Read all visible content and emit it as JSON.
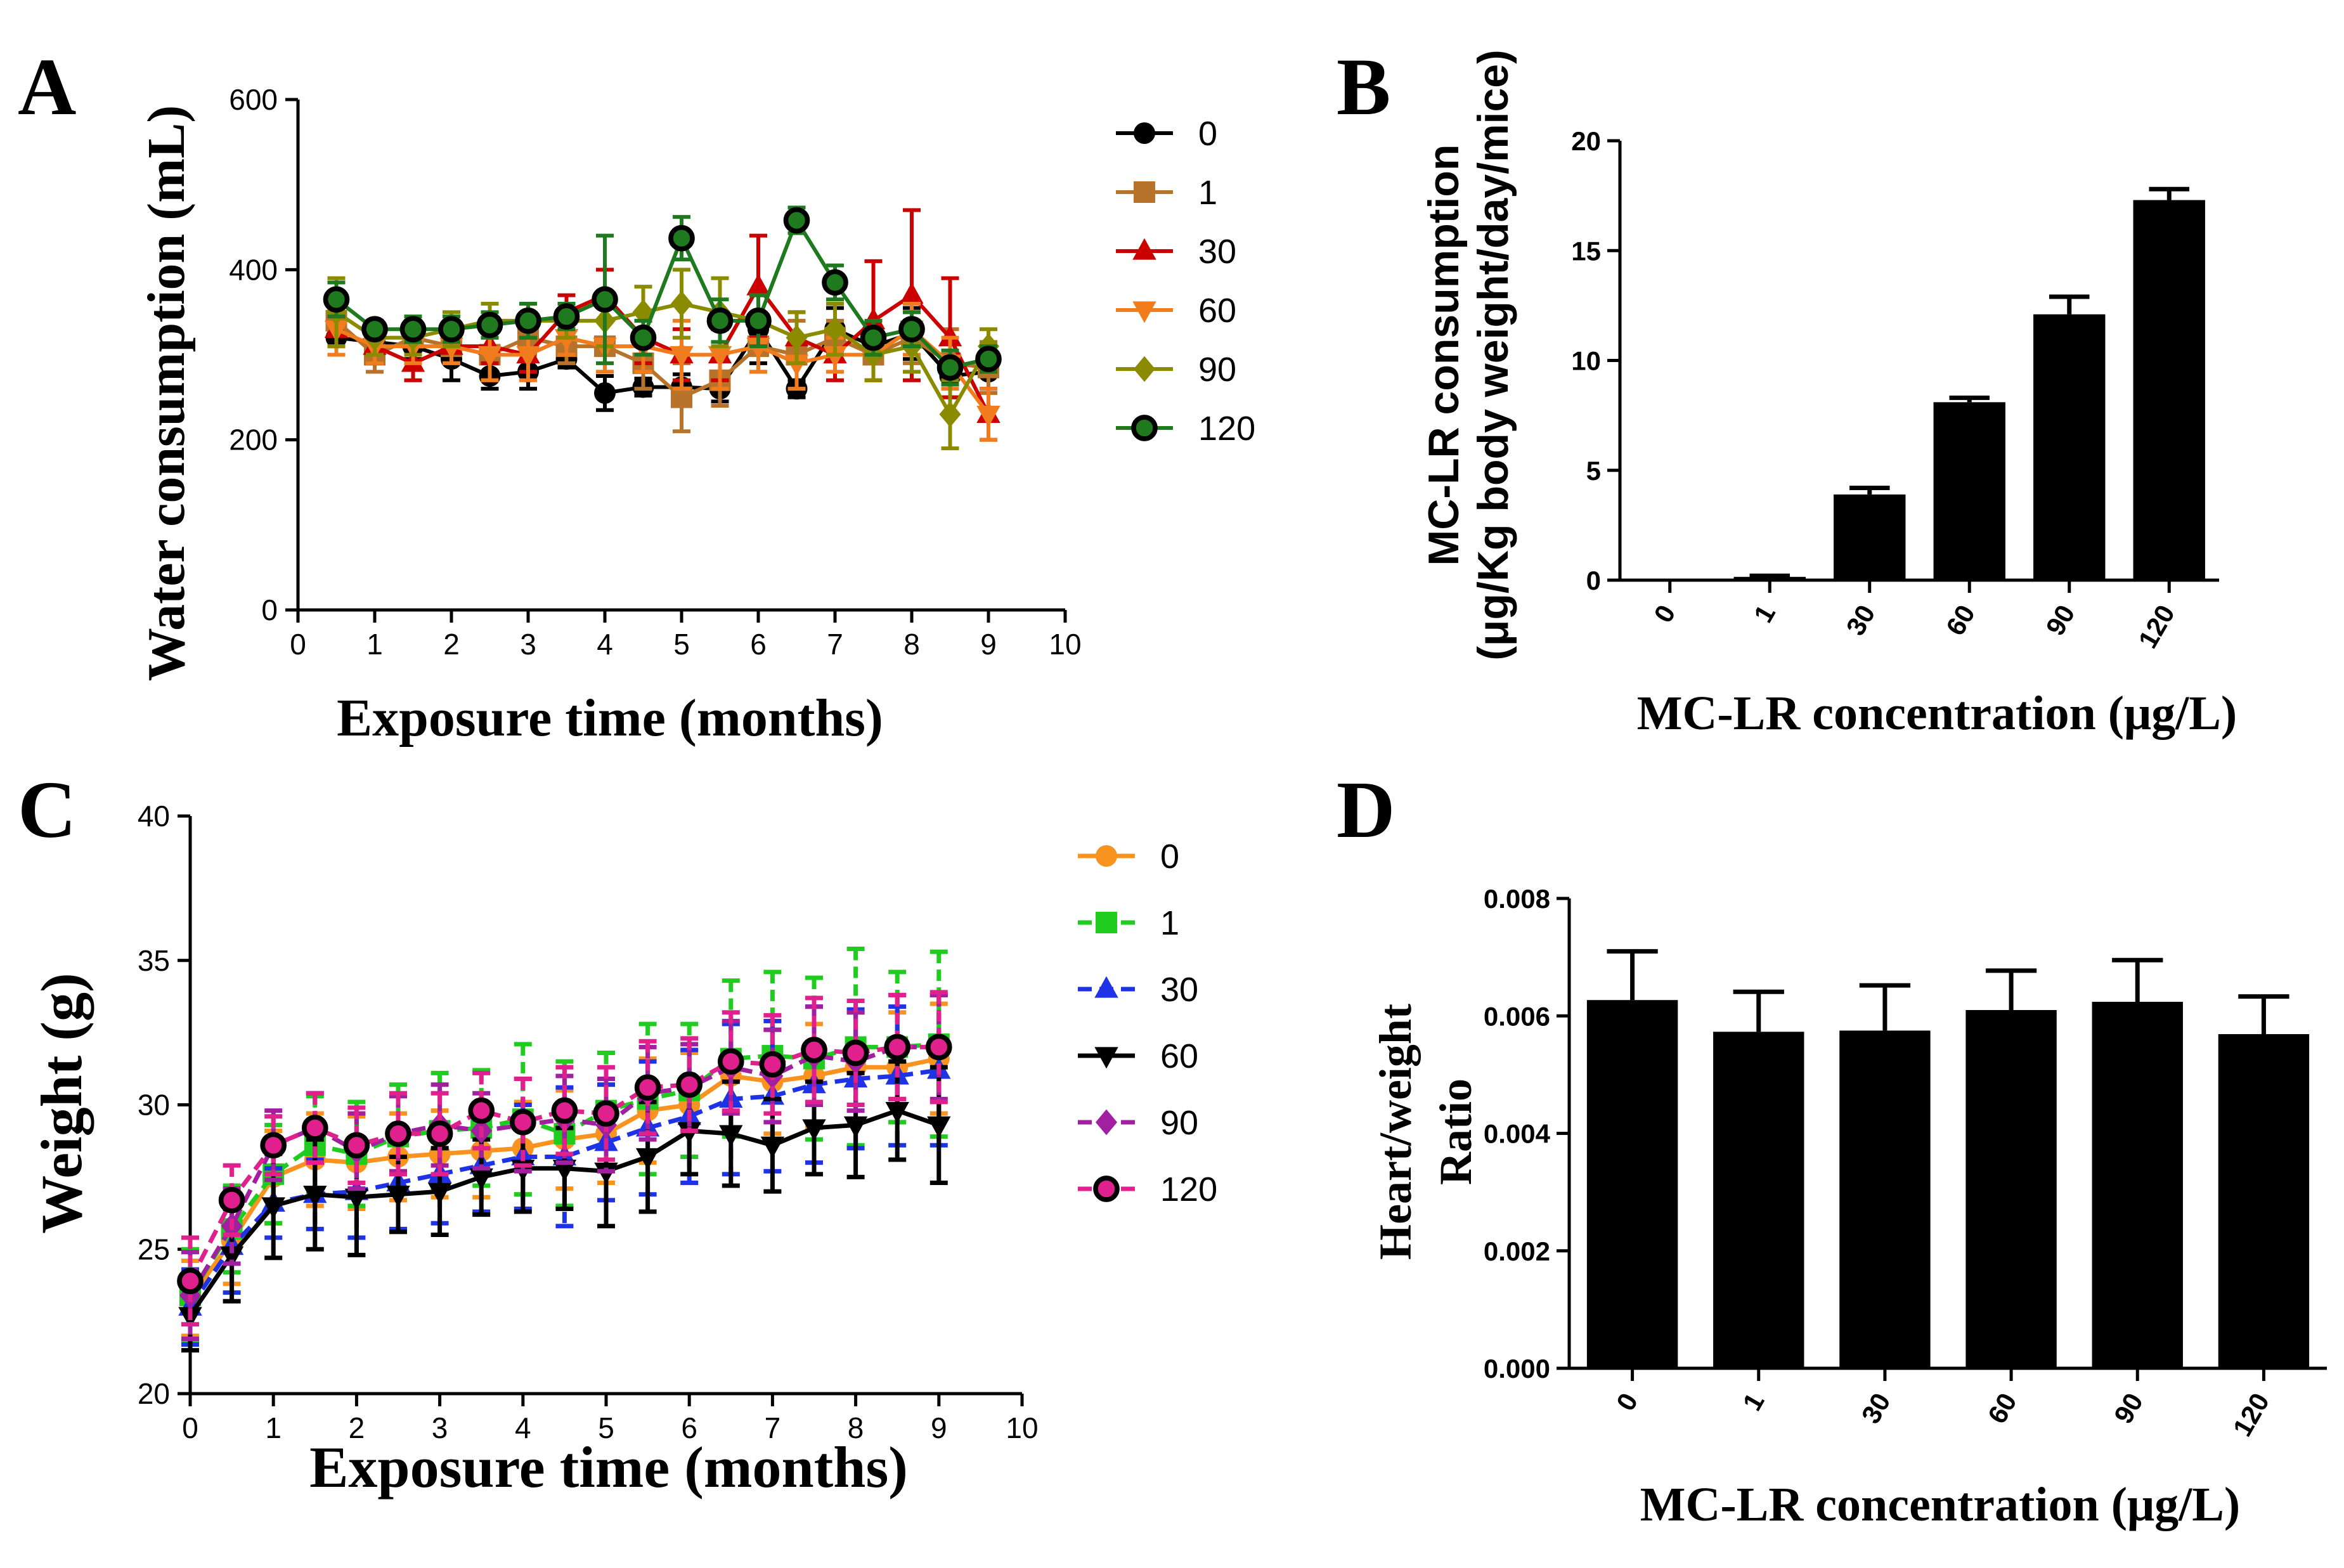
{
  "colors": {
    "c0": "#000000",
    "c1": "#B8732A",
    "c30": "#CC0000",
    "c60": "#F07C1E",
    "c90": "#8B8B00",
    "c120": "#1F7A1F",
    "w0": "#F7931E",
    "w1": "#1FCC1F",
    "w30": "#1E32E6",
    "w60": "#000000",
    "w90": "#A020A0",
    "w120": "#E0208C"
  },
  "chart_data": [
    {
      "id": "A",
      "panel_label": "A",
      "type": "line",
      "title": "",
      "xlabel": "Exposure time (months)",
      "ylabel": "Water consumption (mL)",
      "xlim": [
        0,
        10
      ],
      "ylim": [
        0,
        600
      ],
      "xticks": [
        "0",
        "1",
        "2",
        "3",
        "4",
        "5",
        "6",
        "7",
        "8",
        "9",
        "10"
      ],
      "yticks": [
        "0",
        "200",
        "400",
        "600"
      ],
      "legend_position": "right",
      "x": [
        0.5,
        1,
        1.5,
        2,
        2.5,
        3,
        3.5,
        4,
        4.5,
        5,
        5.5,
        6,
        6.5,
        7,
        7.5,
        8,
        8.5,
        9
      ],
      "series": [
        {
          "name": "0",
          "marker": "circle",
          "color_key": "c0",
          "values": [
            320,
            315,
            310,
            295,
            275,
            280,
            295,
            255,
            262,
            262,
            260,
            330,
            260,
            330,
            310,
            325,
            275,
            280
          ],
          "errors": [
            20,
            15,
            15,
            25,
            15,
            20,
            10,
            20,
            10,
            15,
            15,
            40,
            10,
            25,
            20,
            30,
            25,
            20
          ]
        },
        {
          "name": "1",
          "marker": "square",
          "color_key": "c1",
          "values": [
            340,
            300,
            320,
            310,
            300,
            320,
            310,
            310,
            290,
            250,
            270,
            310,
            300,
            320,
            300,
            320,
            290,
            285
          ],
          "errors": [
            30,
            20,
            20,
            20,
            30,
            20,
            20,
            30,
            30,
            40,
            30,
            30,
            40,
            20,
            30,
            30,
            40,
            30
          ]
        },
        {
          "name": "30",
          "marker": "triangle-up",
          "color_key": "c30",
          "values": [
            330,
            310,
            290,
            310,
            310,
            300,
            350,
            370,
            320,
            300,
            300,
            380,
            320,
            300,
            340,
            370,
            320,
            230
          ],
          "errors": [
            20,
            20,
            20,
            20,
            20,
            20,
            20,
            30,
            30,
            30,
            30,
            60,
            30,
            30,
            70,
            100,
            70,
            30
          ]
        },
        {
          "name": "60",
          "marker": "triangle-down",
          "color_key": "c60",
          "values": [
            330,
            310,
            310,
            310,
            300,
            300,
            320,
            310,
            310,
            300,
            300,
            310,
            290,
            300,
            300,
            330,
            290,
            230
          ],
          "errors": [
            30,
            20,
            20,
            20,
            30,
            30,
            20,
            30,
            30,
            40,
            40,
            30,
            30,
            20,
            30,
            30,
            30,
            30
          ]
        },
        {
          "name": "90",
          "marker": "diamond",
          "color_key": "c90",
          "values": [
            350,
            320,
            320,
            330,
            340,
            340,
            340,
            340,
            350,
            360,
            350,
            340,
            320,
            330,
            300,
            310,
            230,
            310
          ],
          "errors": [
            40,
            20,
            20,
            20,
            20,
            20,
            20,
            30,
            30,
            40,
            40,
            30,
            30,
            30,
            30,
            30,
            40,
            20
          ]
        },
        {
          "name": "120",
          "marker": "circle-ring",
          "color_key": "c120",
          "values": [
            365,
            330,
            330,
            330,
            335,
            340,
            345,
            365,
            320,
            437,
            340,
            340,
            458,
            385,
            320,
            330,
            285,
            295
          ],
          "errors": [
            20,
            10,
            15,
            15,
            15,
            20,
            15,
            75,
            20,
            25,
            25,
            30,
            15,
            20,
            20,
            20,
            20,
            15
          ]
        }
      ]
    },
    {
      "id": "B",
      "panel_label": "B",
      "type": "bar",
      "title": "",
      "xlabel": "MC-LR concentration (μg/L)",
      "ylabel_line1": "MC-LR consumption",
      "ylabel_line2": "(μg/Kg body weight/day/mice)",
      "ylim": [
        0,
        20
      ],
      "yticks": [
        "0",
        "5",
        "10",
        "15",
        "20"
      ],
      "categories": [
        "0",
        "1",
        "30",
        "60",
        "90",
        "120"
      ],
      "values": [
        0,
        0.15,
        3.9,
        8.1,
        12.1,
        17.3
      ],
      "errors": [
        0,
        0.05,
        0.3,
        0.2,
        0.8,
        0.5
      ]
    },
    {
      "id": "C",
      "panel_label": "C",
      "type": "line",
      "title": "",
      "xlabel": "Exposure time (months)",
      "ylabel": "Weight  (g)",
      "xlim": [
        0,
        10
      ],
      "ylim": [
        20,
        40
      ],
      "xticks": [
        "0",
        "1",
        "2",
        "3",
        "4",
        "5",
        "6",
        "7",
        "8",
        "9",
        "10"
      ],
      "yticks": [
        "20",
        "25",
        "30",
        "35",
        "40"
      ],
      "legend_position": "right",
      "x": [
        0,
        0.5,
        1,
        1.5,
        2,
        2.5,
        3,
        3.5,
        4,
        4.5,
        5,
        5.5,
        6,
        6.5,
        7,
        7.5,
        8,
        8.5,
        9
      ],
      "series": [
        {
          "name": "0",
          "marker": "circle",
          "color_key": "w0",
          "dashed": false,
          "values": [
            23.3,
            25.3,
            27.5,
            28.1,
            28.0,
            28.2,
            28.3,
            28.4,
            28.5,
            28.8,
            29.0,
            29.8,
            30.0,
            31.0,
            30.8,
            31.0,
            31.3,
            31.3,
            31.6
          ],
          "errors": [
            1.3,
            1.5,
            1.6,
            1.6,
            1.6,
            1.5,
            1.5,
            1.6,
            1.6,
            1.7,
            1.7,
            1.8,
            1.8,
            1.8,
            1.8,
            1.8,
            1.9,
            1.9,
            1.9
          ]
        },
        {
          "name": "1",
          "marker": "square",
          "color_key": "w1",
          "dashed": true,
          "values": [
            23.4,
            25.7,
            27.6,
            28.6,
            28.3,
            28.9,
            29.1,
            29.2,
            29.5,
            29.0,
            29.8,
            30.2,
            30.5,
            31.6,
            31.7,
            31.6,
            32.0,
            32.0,
            32.1
          ],
          "errors": [
            1.6,
            1.5,
            1.7,
            1.7,
            1.8,
            1.8,
            2.0,
            2.0,
            2.6,
            2.5,
            2.0,
            2.6,
            2.3,
            2.7,
            2.9,
            2.8,
            3.4,
            2.6,
            3.2
          ]
        },
        {
          "name": "30",
          "marker": "triangle-up",
          "color_key": "w30",
          "dashed": true,
          "values": [
            23.0,
            25.1,
            26.6,
            26.9,
            27.0,
            27.3,
            27.6,
            27.9,
            28.2,
            28.2,
            28.7,
            29.2,
            29.6,
            30.2,
            30.3,
            30.7,
            30.9,
            31.0,
            31.2
          ],
          "errors": [
            1.3,
            1.6,
            1.2,
            1.2,
            1.6,
            1.6,
            1.7,
            1.6,
            1.8,
            2.4,
            2.0,
            2.3,
            2.3,
            2.6,
            2.6,
            2.7,
            2.4,
            2.4,
            2.6
          ]
        },
        {
          "name": "60",
          "marker": "triangle-down",
          "color_key": "w60",
          "dashed": false,
          "values": [
            22.7,
            24.8,
            26.5,
            26.9,
            26.8,
            26.9,
            27.0,
            27.5,
            27.8,
            27.8,
            27.7,
            28.2,
            29.1,
            29.0,
            28.6,
            29.2,
            29.3,
            29.8,
            29.3
          ],
          "errors": [
            1.2,
            1.6,
            1.8,
            1.9,
            2.0,
            1.3,
            1.5,
            1.3,
            1.5,
            1.4,
            1.9,
            1.9,
            1.5,
            1.8,
            1.6,
            1.6,
            1.8,
            1.7,
            2.0
          ]
        },
        {
          "name": "90",
          "marker": "diamond",
          "color_key": "w90",
          "dashed": true,
          "values": [
            23.4,
            25.8,
            28.6,
            29.2,
            28.4,
            29.0,
            29.3,
            29.1,
            29.3,
            29.5,
            29.3,
            30.4,
            30.6,
            31.3,
            31.0,
            31.7,
            31.5,
            32.0,
            32.0
          ],
          "errors": [
            1.5,
            1.3,
            1.2,
            1.2,
            1.3,
            1.3,
            1.4,
            1.3,
            1.6,
            1.5,
            1.6,
            1.6,
            1.5,
            1.6,
            1.6,
            1.7,
            1.7,
            1.8,
            1.8
          ]
        },
        {
          "name": "120",
          "marker": "circle-ring",
          "color_key": "w120",
          "dashed": true,
          "values": [
            23.9,
            26.7,
            28.6,
            29.2,
            28.6,
            29.0,
            29.0,
            29.8,
            29.4,
            29.8,
            29.7,
            30.6,
            30.7,
            31.5,
            31.4,
            31.9,
            31.8,
            32.0,
            32.0
          ],
          "errors": [
            1.5,
            1.2,
            1.0,
            1.2,
            1.3,
            1.4,
            1.4,
            1.3,
            1.5,
            1.5,
            1.6,
            1.6,
            1.6,
            1.7,
            1.7,
            1.8,
            1.8,
            1.8,
            1.9
          ]
        }
      ]
    },
    {
      "id": "D",
      "panel_label": "D",
      "type": "bar",
      "title": "",
      "xlabel": "MC-LR concentration (μg/L)",
      "ylabel_line1": "Heart/weight",
      "ylabel_line2": "Ratio",
      "ylim": [
        0,
        0.008
      ],
      "yticks": [
        "0.000",
        "0.002",
        "0.004",
        "0.006",
        "0.008"
      ],
      "categories": [
        "0",
        "1",
        "30",
        "60",
        "90",
        "120"
      ],
      "values": [
        0.00627,
        0.00573,
        0.00575,
        0.0061,
        0.00624,
        0.00569
      ],
      "errors": [
        0.00083,
        0.00068,
        0.00077,
        0.00067,
        0.00071,
        0.00064
      ]
    }
  ]
}
